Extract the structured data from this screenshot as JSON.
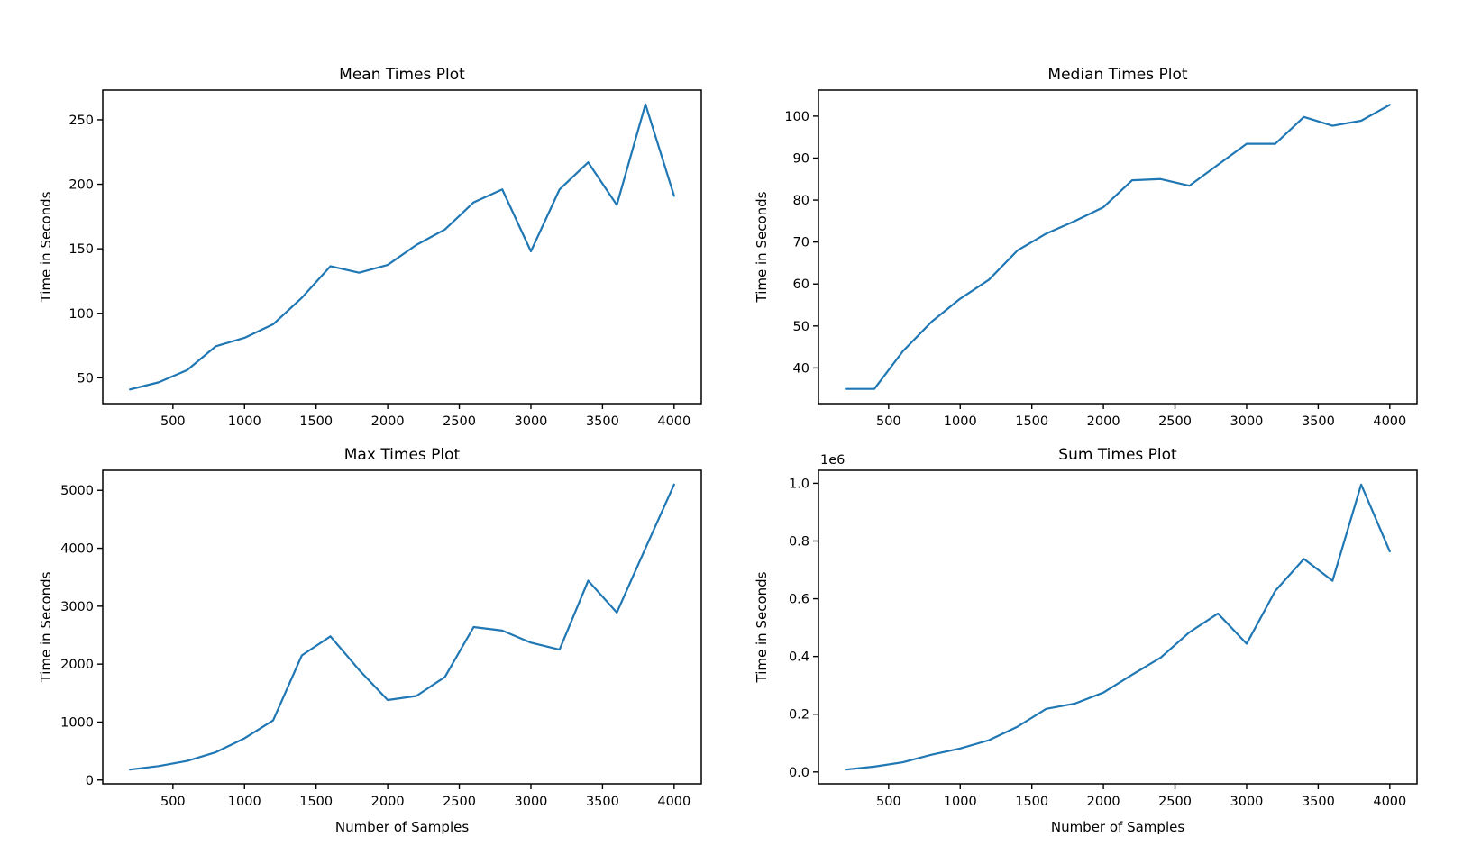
{
  "figure": {
    "background": "#ffffff",
    "text_color": "#000000",
    "line_color": "#1f77b4"
  },
  "chart_data": [
    {
      "id": "mean",
      "type": "line",
      "title": "Mean Times Plot",
      "xlabel": "",
      "ylabel": "Time in Seconds",
      "offset_text": "",
      "x": [
        200,
        400,
        600,
        800,
        1000,
        1200,
        1400,
        1600,
        1800,
        2000,
        2200,
        2400,
        2600,
        2800,
        3000,
        3200,
        3400,
        3600,
        3800,
        4000
      ],
      "values": [
        41,
        46.5,
        56,
        74.5,
        81,
        91.5,
        112,
        136.5,
        131.5,
        137.5,
        153,
        165,
        186,
        196,
        148,
        196,
        217,
        184,
        262,
        191
      ],
      "xlim": [
        10,
        4190
      ],
      "ylim": [
        30,
        273
      ],
      "xticks": [
        500,
        1000,
        1500,
        2000,
        2500,
        3000,
        3500,
        4000
      ],
      "xtick_labels": [
        "500",
        "1000",
        "1500",
        "2000",
        "2500",
        "3000",
        "3500",
        "4000"
      ],
      "yticks": [
        50,
        100,
        150,
        200,
        250
      ],
      "ytick_labels": [
        "50",
        "100",
        "150",
        "200",
        "250"
      ],
      "grid": false,
      "legend": null,
      "line_color": "#1f77b4"
    },
    {
      "id": "median",
      "type": "line",
      "title": "Median Times Plot",
      "xlabel": "",
      "ylabel": "Time in Seconds",
      "offset_text": "",
      "x": [
        200,
        400,
        600,
        800,
        1000,
        1200,
        1400,
        1600,
        1800,
        2000,
        2200,
        2400,
        2600,
        2800,
        3000,
        3200,
        3400,
        3600,
        3800,
        4000
      ],
      "values": [
        35,
        35,
        44,
        51,
        56.5,
        61,
        68,
        72,
        75,
        78.3,
        84.7,
        85,
        83.4,
        88.4,
        93.4,
        93.4,
        99.8,
        97.7,
        98.9,
        102.7
      ],
      "xlim": [
        10,
        4190
      ],
      "ylim": [
        31.5,
        106.2
      ],
      "xticks": [
        500,
        1000,
        1500,
        2000,
        2500,
        3000,
        3500,
        4000
      ],
      "xtick_labels": [
        "500",
        "1000",
        "1500",
        "2000",
        "2500",
        "3000",
        "3500",
        "4000"
      ],
      "yticks": [
        40,
        50,
        60,
        70,
        80,
        90,
        100
      ],
      "ytick_labels": [
        "40",
        "50",
        "60",
        "70",
        "80",
        "90",
        "100"
      ],
      "grid": false,
      "legend": null,
      "line_color": "#1f77b4"
    },
    {
      "id": "max",
      "type": "line",
      "title": "Max Times Plot",
      "xlabel": "Number of Samples",
      "ylabel": "Time in Seconds",
      "offset_text": "",
      "x": [
        200,
        400,
        600,
        800,
        1000,
        1200,
        1400,
        1600,
        1800,
        2000,
        2200,
        2400,
        2600,
        2800,
        3000,
        3200,
        3400,
        3600,
        3800,
        4000
      ],
      "values": [
        180,
        240,
        330,
        480,
        720,
        1030,
        2150,
        2480,
        1900,
        1380,
        1450,
        1780,
        2640,
        2580,
        2370,
        2250,
        3440,
        2890,
        4000,
        5100
      ],
      "xlim": [
        10,
        4190
      ],
      "ylim": [
        -66,
        5346
      ],
      "xticks": [
        500,
        1000,
        1500,
        2000,
        2500,
        3000,
        3500,
        4000
      ],
      "xtick_labels": [
        "500",
        "1000",
        "1500",
        "2000",
        "2500",
        "3000",
        "3500",
        "4000"
      ],
      "yticks": [
        0,
        1000,
        2000,
        3000,
        4000,
        5000
      ],
      "ytick_labels": [
        "0",
        "1000",
        "2000",
        "3000",
        "4000",
        "5000"
      ],
      "grid": false,
      "legend": null,
      "line_color": "#1f77b4"
    },
    {
      "id": "sum",
      "type": "line",
      "title": "Sum Times Plot",
      "xlabel": "Number of Samples",
      "ylabel": "Time in Seconds",
      "offset_text": "1e6",
      "x": [
        200,
        400,
        600,
        800,
        1000,
        1200,
        1400,
        1600,
        1800,
        2000,
        2200,
        2400,
        2600,
        2800,
        3000,
        3200,
        3400,
        3600,
        3800,
        4000
      ],
      "values": [
        8200,
        18600,
        33600,
        59600,
        81000,
        109800,
        156800,
        218400,
        236700,
        275000,
        336600,
        396000,
        483600,
        548800,
        444000,
        627200,
        737800,
        662400,
        995600,
        764000
      ],
      "xlim": [
        10,
        4190
      ],
      "ylim": [
        -41170,
        1044970
      ],
      "xticks": [
        500,
        1000,
        1500,
        2000,
        2500,
        3000,
        3500,
        4000
      ],
      "xtick_labels": [
        "500",
        "1000",
        "1500",
        "2000",
        "2500",
        "3000",
        "3500",
        "4000"
      ],
      "yticks": [
        0,
        200000,
        400000,
        600000,
        800000,
        1000000
      ],
      "ytick_labels": [
        "0.0",
        "0.2",
        "0.4",
        "0.6",
        "0.8",
        "1.0"
      ],
      "grid": false,
      "legend": null,
      "line_color": "#1f77b4"
    }
  ]
}
